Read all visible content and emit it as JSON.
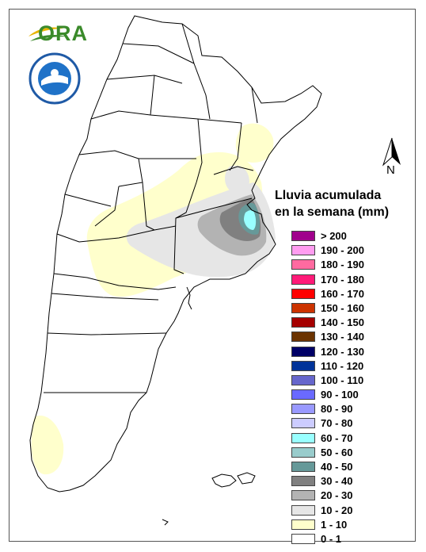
{
  "legend": {
    "title_line1": "Lluvia acumulada",
    "title_line2": "en la semana (mm)",
    "items": [
      {
        "label": "> 200",
        "color": "#a0008c"
      },
      {
        "label": "190 - 200",
        "color": "#ff9cf0"
      },
      {
        "label": "180 - 190",
        "color": "#ff6aa0"
      },
      {
        "label": "170 - 180",
        "color": "#ff1a78"
      },
      {
        "label": "160 - 170",
        "color": "#ff0000"
      },
      {
        "label": "150 - 160",
        "color": "#cc3300"
      },
      {
        "label": "140 - 150",
        "color": "#a50000"
      },
      {
        "label": "130 - 140",
        "color": "#6b3300"
      },
      {
        "label": "120 - 130",
        "color": "#000066"
      },
      {
        "label": "110 - 120",
        "color": "#003399"
      },
      {
        "label": "100 - 110",
        "color": "#6666cc"
      },
      {
        "label": "90 - 100",
        "color": "#6a6aff"
      },
      {
        "label": "80 - 90",
        "color": "#9999ff"
      },
      {
        "label": "70 - 80",
        "color": "#ccccff"
      },
      {
        "label": "60 - 70",
        "color": "#99ffff"
      },
      {
        "label": "50 - 60",
        "color": "#99cccc"
      },
      {
        "label": "40 - 50",
        "color": "#669999"
      },
      {
        "label": "30 - 40",
        "color": "#808080"
      },
      {
        "label": "20 - 30",
        "color": "#b3b3b3"
      },
      {
        "label": "10 - 20",
        "color": "#e6e6e6"
      },
      {
        "label": "1 - 10",
        "color": "#ffffcc"
      },
      {
        "label": "0 - 1",
        "color": "#ffffff"
      }
    ]
  },
  "logo": {
    "text": "ORA"
  },
  "north_arrow": {
    "label": "N"
  },
  "colors": {
    "border": "#000000",
    "frame": "#555555"
  }
}
